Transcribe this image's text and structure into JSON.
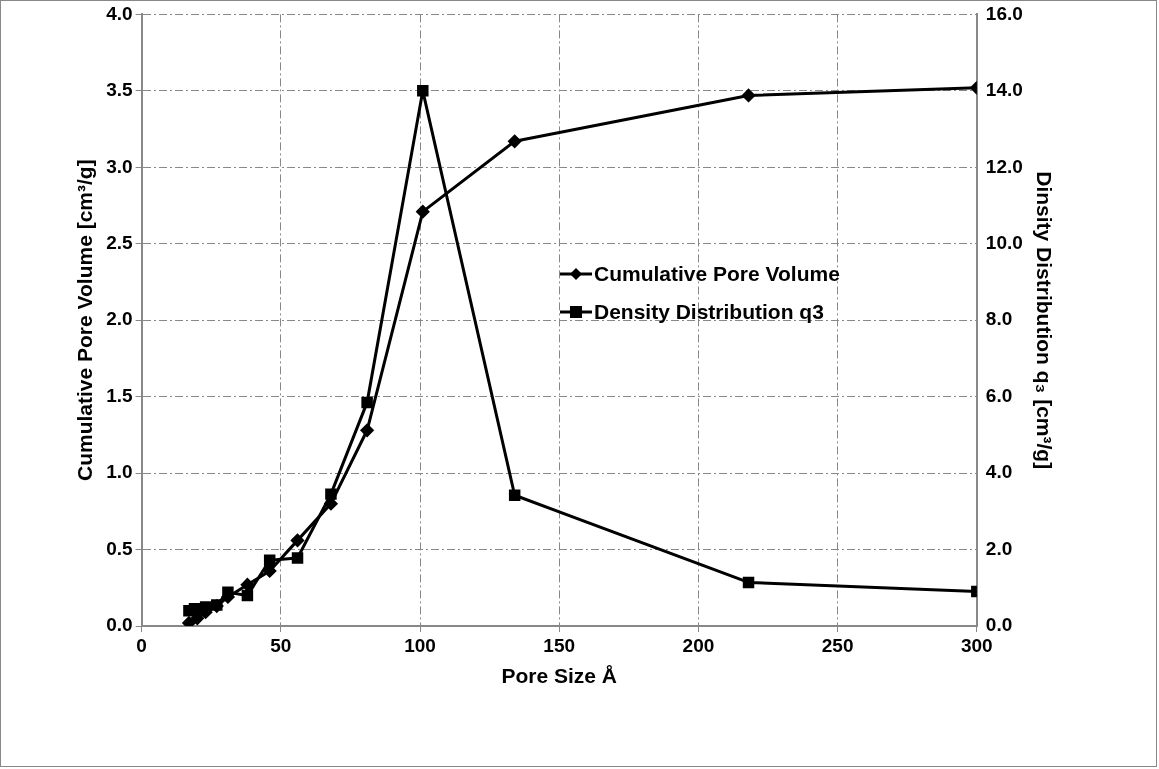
{
  "chart_data": {
    "type": "line",
    "xlabel": "Pore Size Å",
    "ylabel": "Cumulative Pore Volume [cm³/g]",
    "y2label": "Dinsity Distribution q₃ [cm³/g]",
    "series": [
      {
        "name": "Cumulative Pore Volume",
        "color": "#000000",
        "marker": "diamond",
        "x": [
          17,
          20,
          23,
          27,
          31,
          38,
          46,
          56,
          68,
          81,
          101,
          134,
          218,
          300
        ],
        "values": [
          0.02,
          0.05,
          0.09,
          0.13,
          0.19,
          0.27,
          0.36,
          0.56,
          0.8,
          1.28,
          2.71,
          3.17,
          3.47,
          3.52
        ]
      },
      {
        "name": "Density Distribution q3",
        "color": "#000000",
        "marker": "square",
        "axis": "y2",
        "x": [
          17,
          19,
          23,
          27,
          31,
          38,
          46,
          56,
          68,
          81,
          101,
          134,
          218,
          300
        ],
        "values": [
          0.4,
          0.45,
          0.5,
          0.55,
          0.88,
          0.8,
          1.72,
          1.78,
          3.45,
          5.85,
          14.0,
          3.42,
          1.14,
          0.9
        ]
      }
    ],
    "xlim": [
      0,
      300
    ],
    "xticks": [
      0,
      50,
      100,
      150,
      200,
      250,
      300
    ],
    "ylim": [
      0,
      4
    ],
    "yticks": [
      {
        "value": 0,
        "label": "0.0"
      },
      {
        "value": 0.5,
        "label": "0.5"
      },
      {
        "value": 1,
        "label": "1.0"
      },
      {
        "value": 1.5,
        "label": "1.5"
      },
      {
        "value": 2,
        "label": "2.0"
      },
      {
        "value": 2.5,
        "label": "2.5"
      },
      {
        "value": 3,
        "label": "3.0"
      },
      {
        "value": 3.5,
        "label": "3.5"
      },
      {
        "value": 4,
        "label": "4.0"
      }
    ],
    "y2lim": [
      0,
      16
    ],
    "y2ticks": [
      {
        "value": 0,
        "label": "0.0"
      },
      {
        "value": 2,
        "label": "2.0"
      },
      {
        "value": 4,
        "label": "4.0"
      },
      {
        "value": 6,
        "label": "6.0"
      },
      {
        "value": 8,
        "label": "8.0"
      },
      {
        "value": 10,
        "label": "10.0"
      },
      {
        "value": 12,
        "label": "12.0"
      },
      {
        "value": 14,
        "label": "14.0"
      },
      {
        "value": 16,
        "label": "16.0"
      }
    ],
    "grid": true,
    "legend": "right"
  }
}
